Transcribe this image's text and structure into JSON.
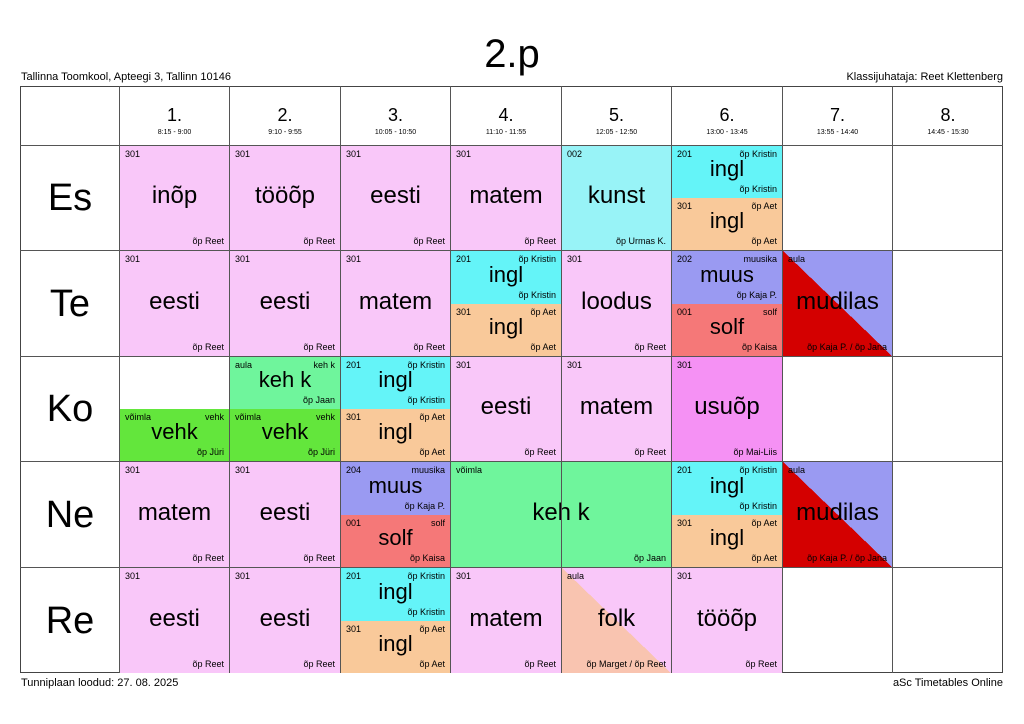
{
  "header": {
    "title": "2.p",
    "school": "Tallinna Toomkool, Apteegi 3, Tallinn 10146",
    "class_teacher": "Klassijuhataja: Reet Klettenberg"
  },
  "footer": {
    "created": "Tunniplaan loodud: 27. 08. 2025",
    "brand": "aSc Timetables Online"
  },
  "periods": [
    {
      "num": "1.",
      "time": "8:15 - 9:00"
    },
    {
      "num": "2.",
      "time": "9:10 - 9:55"
    },
    {
      "num": "3.",
      "time": "10:05 - 10:50"
    },
    {
      "num": "4.",
      "time": "11:10 - 11:55"
    },
    {
      "num": "5.",
      "time": "12:05 - 12:50"
    },
    {
      "num": "6.",
      "time": "13:00 - 13:45"
    },
    {
      "num": "7.",
      "time": "13:55 - 14:40"
    },
    {
      "num": "8.",
      "time": "14:45 - 15:30"
    }
  ],
  "days": [
    "Es",
    "Te",
    "Ko",
    "Ne",
    "Re"
  ],
  "colors": {
    "pink": "#f9c7f9",
    "cyan": "#98f3f7",
    "cyan2": "#64f4f8",
    "orange": "#f9c99a",
    "purple": "#9a9af2",
    "red": "#f57878",
    "dark_red": "#d40000",
    "green": "#6ff59c",
    "light_green": "#63e63c",
    "magenta": "#f591f4",
    "salmon": "#f9c4b0"
  },
  "lessons": {
    "es1": {
      "room": "301",
      "subject": "inõp",
      "teacher": "õp Reet"
    },
    "es2": {
      "room": "301",
      "subject": "tööõp",
      "teacher": "õp Reet"
    },
    "es3": {
      "room": "301",
      "subject": "eesti",
      "teacher": "õp Reet"
    },
    "es4": {
      "room": "301",
      "subject": "matem",
      "teacher": "õp Reet"
    },
    "es5": {
      "room": "002",
      "subject": "kunst",
      "teacher": "õp Urmas K."
    },
    "es6a": {
      "room": "201",
      "group": "õp Kristin",
      "subject": "ingl",
      "teacher": "õp Kristin"
    },
    "es6b": {
      "room": "301",
      "group": "õp Aet",
      "subject": "ingl",
      "teacher": "õp Aet"
    },
    "te1": {
      "room": "301",
      "subject": "eesti",
      "teacher": "õp Reet"
    },
    "te2": {
      "room": "301",
      "subject": "eesti",
      "teacher": "õp Reet"
    },
    "te3": {
      "room": "301",
      "subject": "matem",
      "teacher": "õp Reet"
    },
    "te4a": {
      "room": "201",
      "group": "õp Kristin",
      "subject": "ingl",
      "teacher": "õp Kristin"
    },
    "te4b": {
      "room": "301",
      "group": "õp Aet",
      "subject": "ingl",
      "teacher": "õp Aet"
    },
    "te5": {
      "room": "301",
      "subject": "loodus",
      "teacher": "õp Reet"
    },
    "te6a": {
      "room": "202",
      "group": "muusika",
      "subject": "muus",
      "teacher": "õp Kaja P."
    },
    "te6b": {
      "room": "001",
      "group": "solf",
      "subject": "solf",
      "teacher": "õp Kaisa"
    },
    "te7": {
      "room": "aula",
      "subject": "mudilas",
      "teacher": "õp Kaja P. / õp Jana"
    },
    "ko1": {
      "room": "võimla",
      "group": "vehk",
      "subject": "vehk",
      "teacher": "õp Jüri"
    },
    "ko2a": {
      "room": "aula",
      "group": "keh k",
      "subject": "keh k",
      "teacher": "õp Jaan"
    },
    "ko2b": {
      "room": "võimla",
      "group": "vehk",
      "subject": "vehk",
      "teacher": "õp Jüri"
    },
    "ko3a": {
      "room": "201",
      "group": "õp Kristin",
      "subject": "ingl",
      "teacher": "õp Kristin"
    },
    "ko3b": {
      "room": "301",
      "group": "õp Aet",
      "subject": "ingl",
      "teacher": "õp Aet"
    },
    "ko4": {
      "room": "301",
      "subject": "eesti",
      "teacher": "õp Reet"
    },
    "ko5": {
      "room": "301",
      "subject": "matem",
      "teacher": "õp Reet"
    },
    "ko6": {
      "room": "301",
      "subject": "usuõp",
      "teacher": "õp Mai-Liis"
    },
    "ne1": {
      "room": "301",
      "subject": "matem",
      "teacher": "õp Reet"
    },
    "ne2": {
      "room": "301",
      "subject": "eesti",
      "teacher": "õp Reet"
    },
    "ne3a": {
      "room": "204",
      "group": "muusika",
      "subject": "muus",
      "teacher": "õp Kaja P."
    },
    "ne3b": {
      "room": "001",
      "group": "solf",
      "subject": "solf",
      "teacher": "õp Kaisa"
    },
    "ne45": {
      "room": "võimla",
      "subject": "keh k",
      "teacher": "õp Jaan"
    },
    "ne6a": {
      "room": "201",
      "group": "õp Kristin",
      "subject": "ingl",
      "teacher": "õp Kristin"
    },
    "ne6b": {
      "room": "301",
      "group": "õp Aet",
      "subject": "ingl",
      "teacher": "õp Aet"
    },
    "ne7": {
      "room": "aula",
      "subject": "mudilas",
      "teacher": "õp Kaja P. / õp Jana"
    },
    "re1": {
      "room": "301",
      "subject": "eesti",
      "teacher": "õp Reet"
    },
    "re2": {
      "room": "301",
      "subject": "eesti",
      "teacher": "õp Reet"
    },
    "re3a": {
      "room": "201",
      "group": "õp Kristin",
      "subject": "ingl",
      "teacher": "õp Kristin"
    },
    "re3b": {
      "room": "301",
      "group": "õp Aet",
      "subject": "ingl",
      "teacher": "õp Aet"
    },
    "re4": {
      "room": "301",
      "subject": "matem",
      "teacher": "õp Reet"
    },
    "re5": {
      "room": "aula",
      "subject": "folk",
      "teacher": "õp Marget / õp Reet"
    },
    "re6": {
      "room": "301",
      "subject": "tööõp",
      "teacher": "õp Reet"
    }
  }
}
